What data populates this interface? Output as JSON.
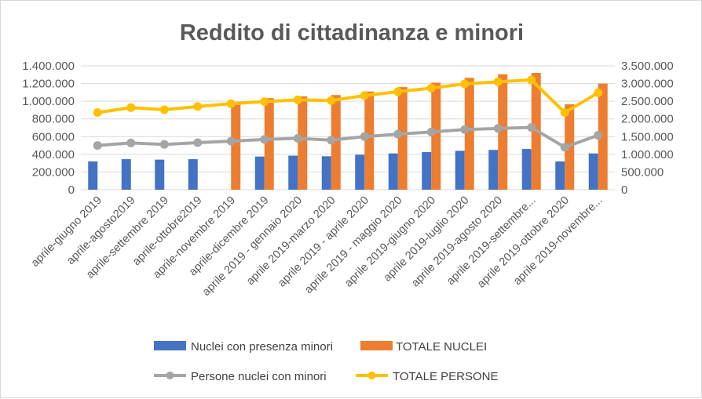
{
  "chart_data": {
    "type": "bar",
    "title": "Reddito di cittadinanza e minori",
    "categories": [
      "aprile-giugno 2019",
      "aprile-agosto2019",
      "aprile-settembre 2019",
      "aprile-ottobre2019",
      "aprile-novembre 2019",
      "aprile-dicembre 2019",
      "aprile 2019 - gennaio 2020",
      "aprile 2019-marzo 2020",
      "aprile 2019 - aprile 2020",
      "aprile 2019 - maggio 2020",
      "aprile 2019-giugno 2020",
      "aprile 2019-luglio 2020",
      "aprile 2019-agosto 2020",
      "aprile 2019-settembre...",
      "aprile 2019-ottobre 2020",
      "aprile 2019-novembre..."
    ],
    "series": [
      {
        "name": "Nuclei con presenza minori",
        "type": "bar",
        "axis": "left",
        "color": "#4472c4",
        "values": [
          320000,
          345000,
          340000,
          345000,
          0,
          375000,
          385000,
          378000,
          395000,
          410000,
          425000,
          440000,
          450000,
          460000,
          320000,
          410000
        ]
      },
      {
        "name": "TOTALE NUCLEI",
        "type": "bar",
        "axis": "left",
        "color": "#ed7d31",
        "values": [
          0,
          0,
          0,
          0,
          960000,
          1035000,
          1055000,
          1070000,
          1110000,
          1160000,
          1210000,
          1265000,
          1305000,
          1320000,
          965000,
          1200000
        ]
      },
      {
        "name": "Persone nuclei con minori",
        "type": "line",
        "axis": "right",
        "color": "#a5a5a5",
        "values": [
          1250000,
          1320000,
          1280000,
          1330000,
          1370000,
          1420000,
          1450000,
          1400000,
          1500000,
          1570000,
          1630000,
          1700000,
          1730000,
          1760000,
          1200000,
          1540000
        ]
      },
      {
        "name": "TOTALE PERSONE",
        "type": "line",
        "axis": "right",
        "color": "#ffc000",
        "values": [
          2180000,
          2320000,
          2260000,
          2350000,
          2430000,
          2490000,
          2540000,
          2520000,
          2660000,
          2770000,
          2870000,
          2990000,
          3050000,
          3100000,
          2180000,
          2740000
        ]
      }
    ],
    "y_left": {
      "ylim": [
        0,
        1400000
      ],
      "tick_labels": [
        "0",
        "200.000",
        "400.000",
        "600.000",
        "800.000",
        "1.000.000",
        "1.200.000",
        "1.400.000"
      ]
    },
    "y_right": {
      "ylim": [
        0,
        3500000
      ],
      "tick_labels": [
        "0",
        "500.000",
        "1.000.000",
        "1.500.000",
        "2.000.000",
        "2.500.000",
        "3.000.000",
        "3.500.000"
      ]
    },
    "grid": true,
    "legend_position": "bottom"
  }
}
